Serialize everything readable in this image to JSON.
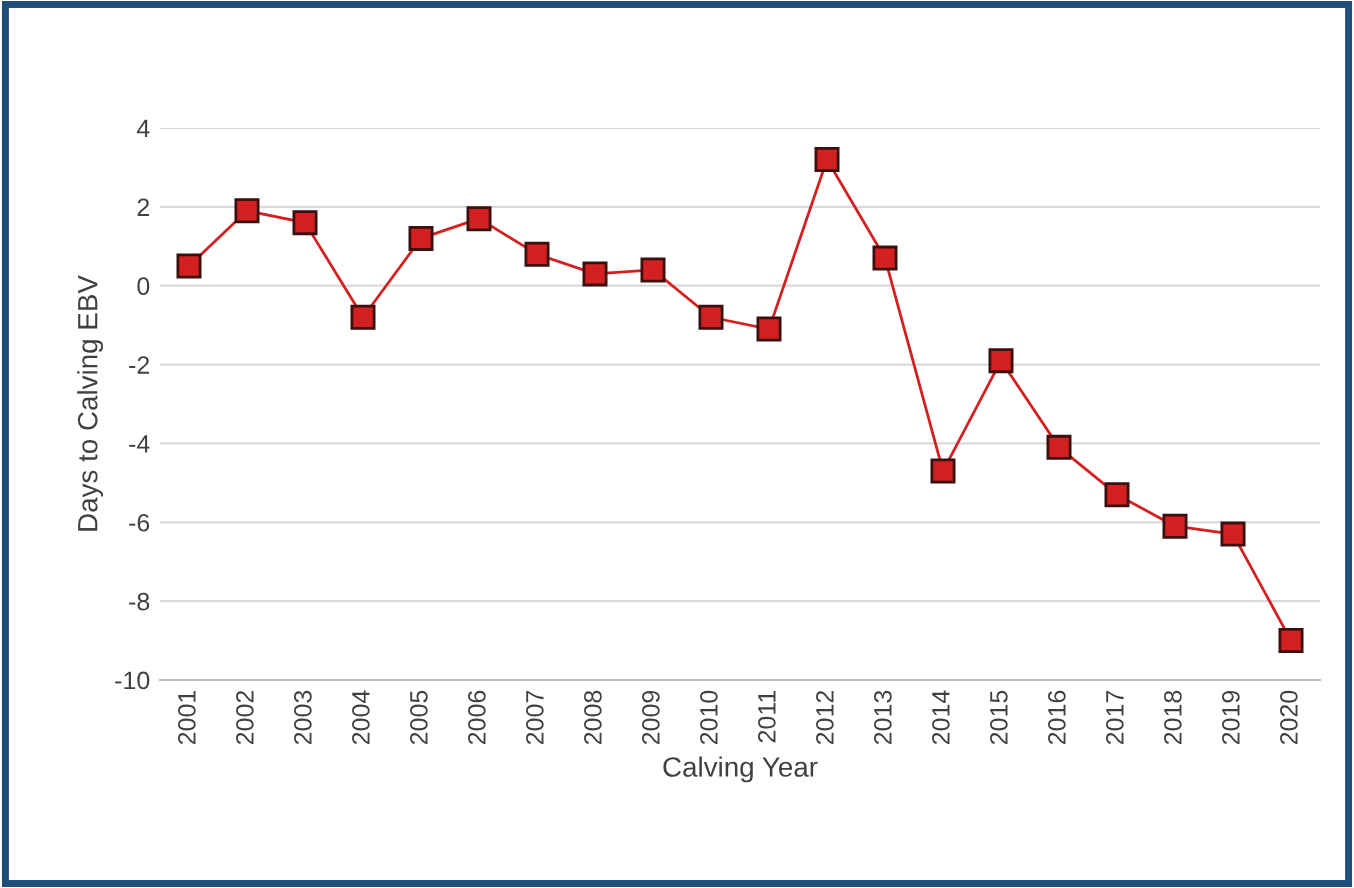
{
  "chart_data": {
    "type": "line",
    "xlabel": "Calving Year",
    "ylabel": "Days to Calving EBV",
    "categories": [
      "2001",
      "2002",
      "2003",
      "2004",
      "2005",
      "2006",
      "2007",
      "2008",
      "2009",
      "2010",
      "2011",
      "2012",
      "2013",
      "2014",
      "2015",
      "2016",
      "2017",
      "2018",
      "2019",
      "2020"
    ],
    "series": [
      {
        "color": "#d42020",
        "values": [
          0.5,
          1.9,
          1.6,
          -0.8,
          1.2,
          1.7,
          0.8,
          0.3,
          0.4,
          -0.8,
          -1.1,
          3.2,
          0.7,
          -4.7,
          -1.9,
          -4.1,
          -5.3,
          -6.1,
          -6.3,
          -9.0
        ]
      }
    ],
    "ylim": [
      -10,
      4
    ],
    "yticks": [
      -10,
      -8,
      -6,
      -4,
      -2,
      0,
      2,
      4
    ],
    "grid": "y",
    "marker": "square",
    "line_style": "solid"
  }
}
